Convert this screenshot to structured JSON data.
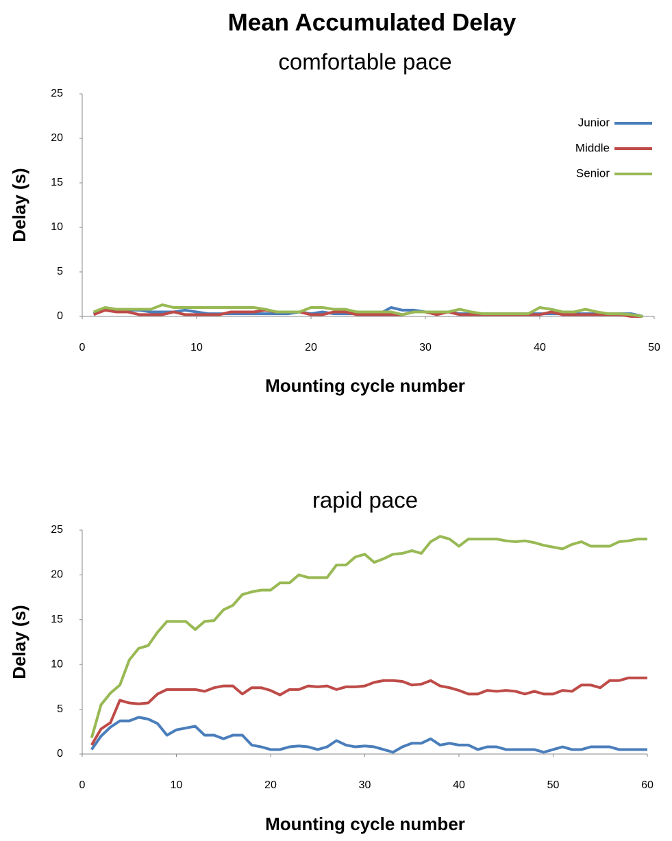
{
  "chart_data": [
    {
      "type": "line",
      "title": "Mean Accumulated Delay",
      "subtitle": "comfortable pace",
      "xlabel": "Mounting cycle number",
      "ylabel": "Delay (s)",
      "x": [
        1,
        2,
        3,
        4,
        5,
        6,
        7,
        8,
        9,
        10,
        11,
        12,
        13,
        14,
        15,
        16,
        17,
        18,
        19,
        20,
        21,
        22,
        23,
        24,
        25,
        26,
        27,
        28,
        29,
        30,
        31,
        32,
        33,
        34,
        35,
        36,
        37,
        38,
        39,
        40,
        41,
        42,
        43,
        44,
        45,
        46,
        47,
        48,
        49
      ],
      "series": [
        {
          "name": "Junior",
          "color": "#4a7ebb",
          "values": [
            0.3,
            0.8,
            0.7,
            0.7,
            0.7,
            0.5,
            0.5,
            0.5,
            0.7,
            0.5,
            0.3,
            0.3,
            0.3,
            0.3,
            0.3,
            0.3,
            0.3,
            0.3,
            0.5,
            0.3,
            0.5,
            0.3,
            0.3,
            0.3,
            0.3,
            0.3,
            1.0,
            0.7,
            0.7,
            0.5,
            0.5,
            0.5,
            0.3,
            0.3,
            0.3,
            0.3,
            0.3,
            0.3,
            0.3,
            0.3,
            0.3,
            0.3,
            0.3,
            0.3,
            0.3,
            0.3,
            0.3,
            0.3,
            0.0
          ]
        },
        {
          "name": "Middle",
          "color": "#be4b48",
          "values": [
            0.2,
            0.7,
            0.5,
            0.5,
            0.2,
            0.2,
            0.2,
            0.5,
            0.2,
            0.2,
            0.2,
            0.2,
            0.5,
            0.5,
            0.5,
            0.7,
            0.5,
            0.5,
            0.5,
            0.2,
            0.2,
            0.5,
            0.5,
            0.2,
            0.2,
            0.2,
            0.2,
            0.2,
            0.5,
            0.5,
            0.2,
            0.5,
            0.2,
            0.2,
            0.2,
            0.2,
            0.2,
            0.2,
            0.2,
            0.2,
            0.5,
            0.2,
            0.2,
            0.2,
            0.2,
            0.2,
            0.2,
            0.0,
            0.0
          ]
        },
        {
          "name": "Senior",
          "color": "#98b954",
          "values": [
            0.5,
            1.0,
            0.8,
            0.8,
            0.8,
            0.8,
            1.3,
            1.0,
            1.0,
            1.0,
            1.0,
            1.0,
            1.0,
            1.0,
            1.0,
            0.8,
            0.5,
            0.5,
            0.5,
            1.0,
            1.0,
            0.8,
            0.8,
            0.5,
            0.5,
            0.5,
            0.5,
            0.2,
            0.5,
            0.5,
            0.5,
            0.5,
            0.8,
            0.5,
            0.3,
            0.3,
            0.3,
            0.3,
            0.3,
            1.0,
            0.8,
            0.5,
            0.5,
            0.8,
            0.5,
            0.3,
            0.3,
            0.2,
            0.0
          ]
        }
      ],
      "xlim": [
        0,
        50
      ],
      "xticks": [
        0,
        10,
        20,
        30,
        40,
        50
      ],
      "ylim": [
        0,
        25
      ],
      "yticks": [
        0,
        5,
        10,
        15,
        20,
        25
      ],
      "legend": "upper right"
    },
    {
      "type": "line",
      "subtitle": "rapid pace",
      "xlabel": "Mounting cycle number",
      "ylabel": "Delay (s)",
      "x": [
        1,
        2,
        3,
        4,
        5,
        6,
        7,
        8,
        9,
        10,
        11,
        12,
        13,
        14,
        15,
        16,
        17,
        18,
        19,
        20,
        21,
        22,
        23,
        24,
        25,
        26,
        27,
        28,
        29,
        30,
        31,
        32,
        33,
        34,
        35,
        36,
        37,
        38,
        39,
        40,
        41,
        42,
        43,
        44,
        45,
        46,
        47,
        48,
        49,
        50,
        51,
        52,
        53,
        54,
        55,
        56,
        57,
        58,
        59,
        60
      ],
      "series": [
        {
          "color": "#4a7ebb",
          "values": [
            0.5,
            2,
            3,
            3.7,
            3.7,
            4.1,
            3.9,
            3.4,
            2.1,
            2.7,
            2.9,
            3.1,
            2.1,
            2.1,
            1.7,
            2.1,
            2.1,
            1.0,
            0.8,
            0.5,
            0.5,
            0.8,
            0.9,
            0.8,
            0.5,
            0.8,
            1.5,
            1.0,
            0.8,
            0.9,
            0.8,
            0.5,
            0.2,
            0.8,
            1.2,
            1.2,
            1.7,
            1.0,
            1.2,
            1.0,
            1.0,
            0.5,
            0.8,
            0.8,
            0.5,
            0.5,
            0.5,
            0.5,
            0.2,
            0.5,
            0.8,
            0.5,
            0.5,
            0.8,
            0.8,
            0.8,
            0.5,
            0.5,
            0.5,
            0.5
          ]
        },
        {
          "color": "#be4b48",
          "values": [
            1.0,
            2.8,
            3.5,
            6.0,
            5.7,
            5.6,
            5.7,
            6.7,
            7.2,
            7.2,
            7.2,
            7.2,
            7.0,
            7.4,
            7.6,
            7.6,
            6.7,
            7.4,
            7.4,
            7.1,
            6.6,
            7.2,
            7.2,
            7.6,
            7.5,
            7.6,
            7.2,
            7.5,
            7.5,
            7.6,
            8.0,
            8.2,
            8.2,
            8.1,
            7.7,
            7.8,
            8.2,
            7.6,
            7.4,
            7.1,
            6.7,
            6.7,
            7.1,
            7.0,
            7.1,
            7.0,
            6.7,
            7.0,
            6.7,
            6.7,
            7.1,
            7.0,
            7.7,
            7.7,
            7.4,
            8.2,
            8.2,
            8.5,
            8.5,
            8.5
          ]
        },
        {
          "color": "#98b954",
          "values": [
            1.8,
            5.5,
            6.8,
            7.7,
            10.5,
            11.8,
            12.1,
            13.6,
            14.8,
            14.8,
            14.8,
            13.9,
            14.8,
            14.9,
            16.1,
            16.6,
            17.8,
            18.1,
            18.3,
            18.3,
            19.1,
            19.1,
            20.0,
            19.7,
            19.7,
            19.7,
            21.1,
            21.1,
            22.0,
            22.3,
            21.4,
            21.8,
            22.3,
            22.4,
            22.7,
            22.4,
            23.7,
            24.3,
            24.0,
            23.2,
            24.0,
            24.0,
            24.0,
            24.0,
            23.8,
            23.7,
            23.8,
            23.6,
            23.3,
            23.1,
            22.9,
            23.4,
            23.7,
            23.2,
            23.2,
            23.2,
            23.7,
            23.8,
            24.0,
            24.0
          ]
        }
      ],
      "xlim": [
        0,
        60
      ],
      "xticks": [
        0,
        10,
        20,
        30,
        40,
        50,
        60
      ],
      "ylim": [
        0,
        25
      ],
      "yticks": [
        0,
        5,
        10,
        15,
        20,
        25
      ]
    }
  ]
}
